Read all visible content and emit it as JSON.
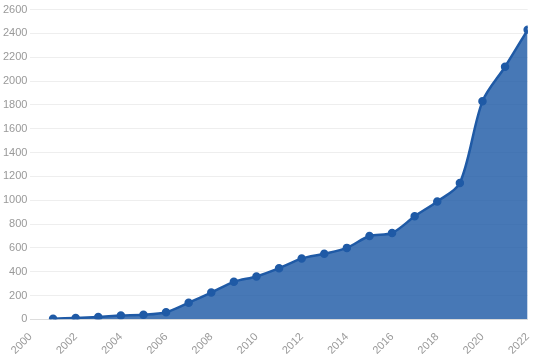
{
  "chart_data": {
    "type": "area",
    "x": [
      2001,
      2002,
      2003,
      2004,
      2005,
      2006,
      2007,
      2008,
      2009,
      2010,
      2011,
      2012,
      2013,
      2014,
      2015,
      2016,
      2017,
      2018,
      2019,
      2020,
      2021,
      2022
    ],
    "values": [
      5,
      12,
      20,
      32,
      38,
      60,
      140,
      225,
      315,
      360,
      430,
      510,
      550,
      600,
      700,
      725,
      865,
      990,
      1145,
      1830,
      2120,
      2430
    ],
    "color": "#1f5aa6",
    "marker": "circle",
    "xlim": [
      2000,
      2022
    ],
    "xticks": [
      2000,
      2002,
      2004,
      2006,
      2008,
      2010,
      2012,
      2014,
      2016,
      2018,
      2020,
      2022
    ],
    "ylim": [
      0,
      2600
    ],
    "yticks": [
      0,
      200,
      400,
      600,
      800,
      1000,
      1200,
      1400,
      1600,
      1800,
      2000,
      2200,
      2400,
      2600
    ],
    "grid": true
  }
}
